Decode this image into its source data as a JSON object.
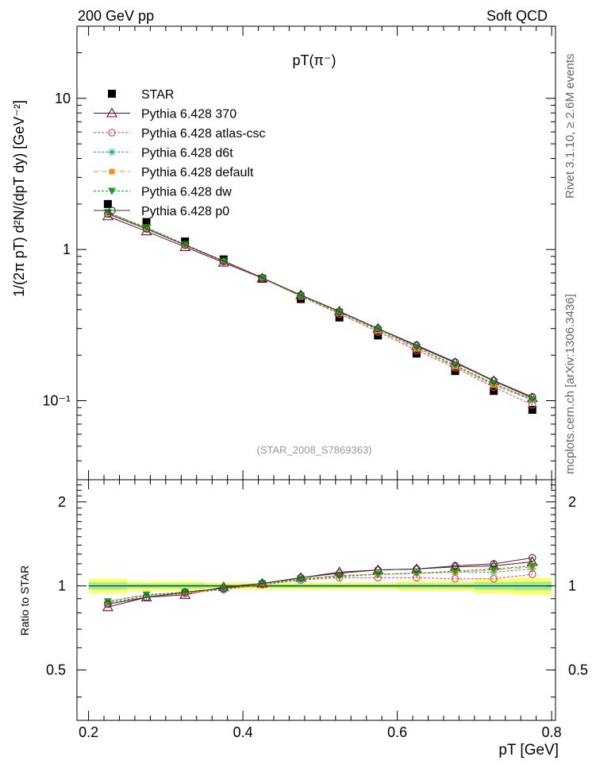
{
  "header": {
    "left": "200 GeV pp",
    "right": "Soft QCD"
  },
  "side_text": {
    "top": "Rivet 3.1.10, ≥ 2.6M events",
    "bottom": "mcplots.cern.ch [arXiv:1306.3436]"
  },
  "chart_data": [
    {
      "type": "line",
      "title": "pT(π⁻)",
      "ylabel": "1/(2π pT) d²N/(dpT dy) [GeV⁻²]",
      "xlabel": "pT [GeV]",
      "scale": "log",
      "watermark": "(STAR_2008_S7869363)",
      "xlim": [
        0.185,
        0.805
      ],
      "ylim": [
        0.03,
        30
      ],
      "x": [
        0.225,
        0.275,
        0.325,
        0.375,
        0.425,
        0.475,
        0.525,
        0.575,
        0.625,
        0.675,
        0.725,
        0.775
      ],
      "y_tick_labels": [
        "10⁻¹",
        "1",
        "10"
      ],
      "x_tick_labels": [
        "0.2",
        "0.4",
        "0.6",
        "0.8"
      ],
      "legend_position": "top-left",
      "series": [
        {
          "name": "STAR",
          "color": "#000000",
          "marker": "square",
          "dash": "",
          "values": [
            2.0,
            1.52,
            1.13,
            0.86,
            0.64,
            0.47,
            0.355,
            0.27,
            0.205,
            0.157,
            0.116,
            0.087
          ]
        },
        {
          "name": "Pythia 6.428 370",
          "color": "#7a0033",
          "marker": "triangle-open",
          "dash": "",
          "values": [
            1.66,
            1.32,
            1.04,
            0.82,
            0.645,
            0.5,
            0.39,
            0.3,
            0.23,
            0.178,
            0.135,
            0.104
          ]
        },
        {
          "name": "Pythia 6.428 atlas-csc",
          "color": "#e8405a",
          "marker": "circle-open",
          "dash": "3,2",
          "values": [
            1.72,
            1.38,
            1.07,
            0.83,
            0.645,
            0.49,
            0.375,
            0.285,
            0.215,
            0.165,
            0.123,
            0.094
          ]
        },
        {
          "name": "Pythia 6.428 d6t",
          "color": "#1aa890",
          "marker": "star",
          "dash": "3,2",
          "values": [
            1.74,
            1.39,
            1.08,
            0.84,
            0.65,
            0.495,
            0.385,
            0.295,
            0.225,
            0.17,
            0.128,
            0.1
          ]
        },
        {
          "name": "Pythia 6.428 default",
          "color": "#f28c28",
          "marker": "square-small",
          "dash": "6,2,1,2",
          "values": [
            1.75,
            1.39,
            1.07,
            0.835,
            0.645,
            0.49,
            0.38,
            0.29,
            0.22,
            0.168,
            0.127,
            0.102
          ]
        },
        {
          "name": "Pythia 6.428 dw",
          "color": "#1e9e1e",
          "marker": "triangle-down",
          "dash": "3,2",
          "values": [
            1.76,
            1.4,
            1.08,
            0.84,
            0.65,
            0.495,
            0.385,
            0.295,
            0.225,
            0.172,
            0.13,
            0.102
          ]
        },
        {
          "name": "Pythia 6.428 p0",
          "color": "#333333",
          "marker": "circle-open",
          "dash": "",
          "values": [
            1.72,
            1.37,
            1.07,
            0.84,
            0.65,
            0.5,
            0.39,
            0.3,
            0.233,
            0.18,
            0.136,
            0.106
          ]
        }
      ]
    },
    {
      "type": "line",
      "ylabel": "Ratio to STAR",
      "xlabel": "pT [GeV]",
      "xlim": [
        0.185,
        0.805
      ],
      "ylim": [
        0.33,
        2.4
      ],
      "x": [
        0.225,
        0.275,
        0.325,
        0.375,
        0.425,
        0.475,
        0.525,
        0.575,
        0.625,
        0.675,
        0.725,
        0.775
      ],
      "y_tick_labels": [
        "0.5",
        "1",
        "2"
      ],
      "band": {
        "x_edges": [
          0.2,
          0.25,
          0.3,
          0.35,
          0.4,
          0.45,
          0.5,
          0.55,
          0.6,
          0.65,
          0.7,
          0.75,
          0.8
        ],
        "outer": [
          0.06,
          0.04,
          0.04,
          0.03,
          0.03,
          0.03,
          0.03,
          0.03,
          0.04,
          0.04,
          0.06,
          0.07
        ],
        "inner": [
          0.03,
          0.02,
          0.02,
          0.015,
          0.015,
          0.015,
          0.015,
          0.015,
          0.02,
          0.02,
          0.03,
          0.035
        ],
        "outer_color": "#ffff66",
        "inner_color": "#99ee99"
      },
      "series": [
        {
          "name": "Pythia 6.428 370",
          "color": "#7a0033",
          "marker": "triangle-open",
          "dash": "",
          "values": [
            0.84,
            0.91,
            0.93,
            0.99,
            1.02,
            1.07,
            1.12,
            1.14,
            1.15,
            1.17,
            1.18,
            1.22
          ]
        },
        {
          "name": "Pythia 6.428 atlas-csc",
          "color": "#e8405a",
          "marker": "circle-open",
          "dash": "3,2",
          "values": [
            0.87,
            0.91,
            0.94,
            0.97,
            1.01,
            1.05,
            1.07,
            1.07,
            1.07,
            1.06,
            1.06,
            1.1
          ]
        },
        {
          "name": "Pythia 6.428 d6t",
          "color": "#1aa890",
          "marker": "star",
          "dash": "3,2",
          "values": [
            0.87,
            0.92,
            0.95,
            0.97,
            1.02,
            1.05,
            1.09,
            1.1,
            1.11,
            1.12,
            1.12,
            1.15
          ]
        },
        {
          "name": "Pythia 6.428 default",
          "color": "#f28c28",
          "marker": "square-small",
          "dash": "6,2,1,2",
          "values": [
            0.88,
            0.93,
            0.94,
            0.98,
            1.02,
            1.06,
            1.09,
            1.1,
            1.11,
            1.12,
            1.14,
            1.17
          ]
        },
        {
          "name": "Pythia 6.428 dw",
          "color": "#1e9e1e",
          "marker": "triangle-down",
          "dash": "3,2",
          "values": [
            0.88,
            0.93,
            0.95,
            0.98,
            1.02,
            1.06,
            1.08,
            1.1,
            1.11,
            1.13,
            1.15,
            1.18
          ]
        },
        {
          "name": "Pythia 6.428 p0",
          "color": "#333333",
          "marker": "circle-open",
          "dash": "",
          "values": [
            0.86,
            0.91,
            0.95,
            0.98,
            1.02,
            1.07,
            1.11,
            1.14,
            1.15,
            1.18,
            1.2,
            1.26
          ]
        }
      ]
    }
  ]
}
